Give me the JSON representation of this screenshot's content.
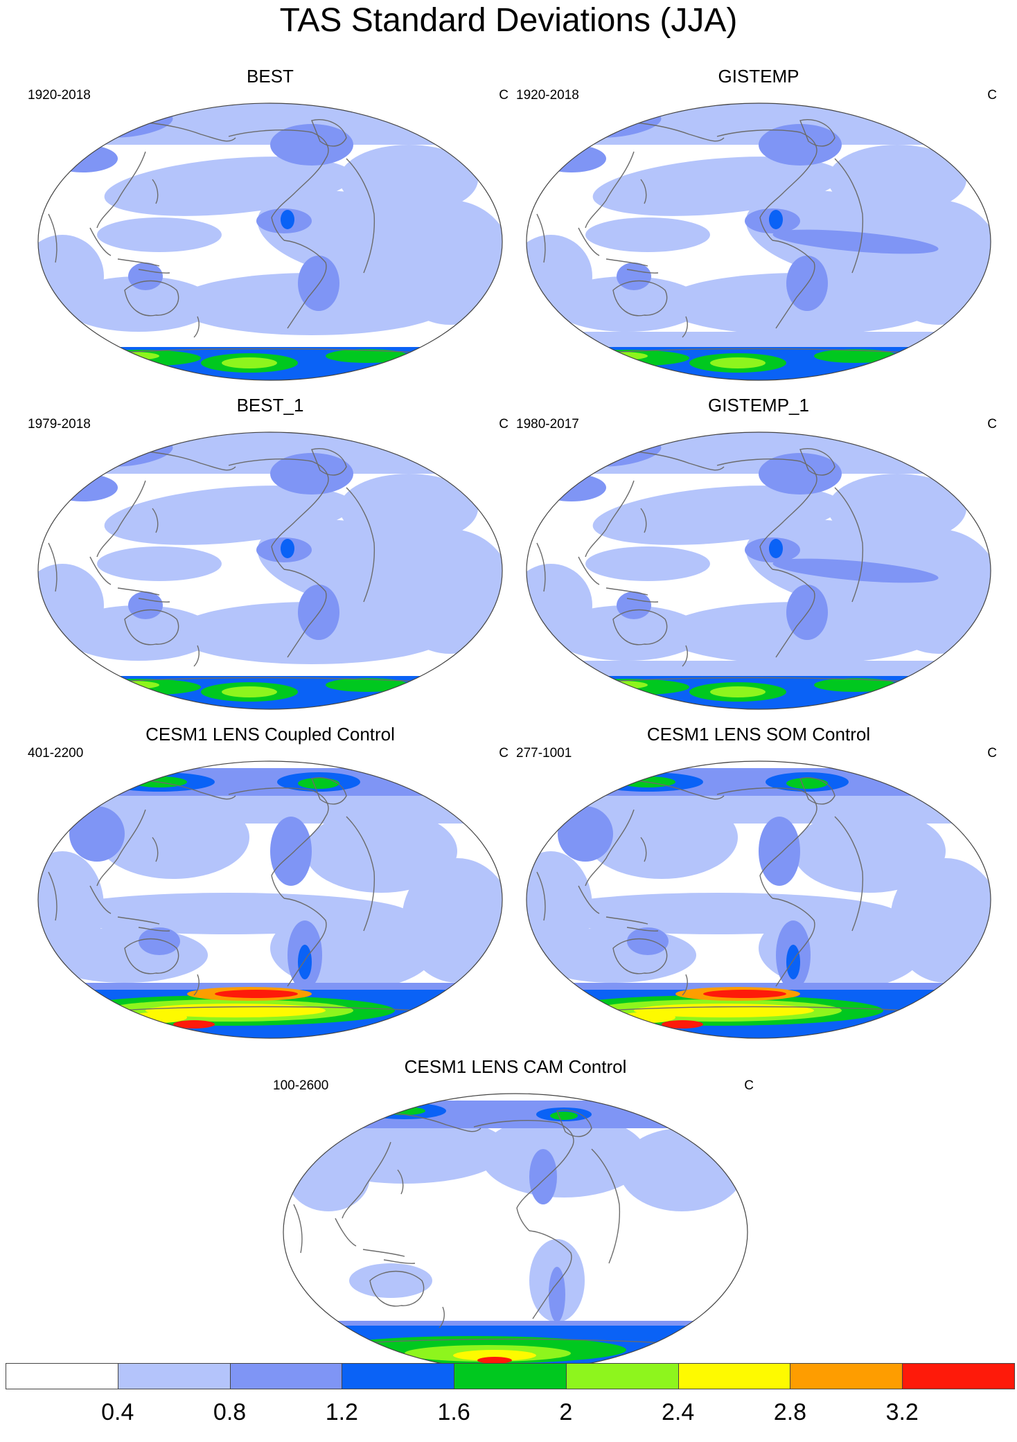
{
  "title": "TAS Standard Deviations (JJA)",
  "colors": {
    "levels": [
      "#ffffff",
      "#b4c4fb",
      "#7f95f5",
      "#0a62f6",
      "#00c81f",
      "#8ef51d",
      "#fefa00",
      "#fe9d00",
      "#fe1a0a"
    ],
    "land_outline": "#6b6b6b",
    "map_border": "#444444"
  },
  "panels": [
    {
      "id": "best",
      "title": "BEST",
      "period": "1920-2018",
      "unit": "C"
    },
    {
      "id": "gistemp",
      "title": "GISTEMP",
      "period": "1920-2018",
      "unit": "C"
    },
    {
      "id": "best1",
      "title": "BEST_1",
      "period": "1979-2018",
      "unit": "C"
    },
    {
      "id": "gistemp1",
      "title": "GISTEMP_1",
      "period": "1980-2017",
      "unit": "C"
    },
    {
      "id": "coupled",
      "title": "CESM1 LENS Coupled Control",
      "period": "401-2200",
      "unit": "C"
    },
    {
      "id": "som",
      "title": "CESM1 LENS SOM Control",
      "period": "277-1001",
      "unit": "C"
    },
    {
      "id": "cam",
      "title": "CESM1 LENS CAM Control",
      "period": "100-2600",
      "unit": "C"
    }
  ],
  "colorbar": {
    "labels": [
      "0.4",
      "0.8",
      "1.2",
      "1.6",
      "2",
      "2.4",
      "2.8",
      "3.2"
    ]
  }
}
